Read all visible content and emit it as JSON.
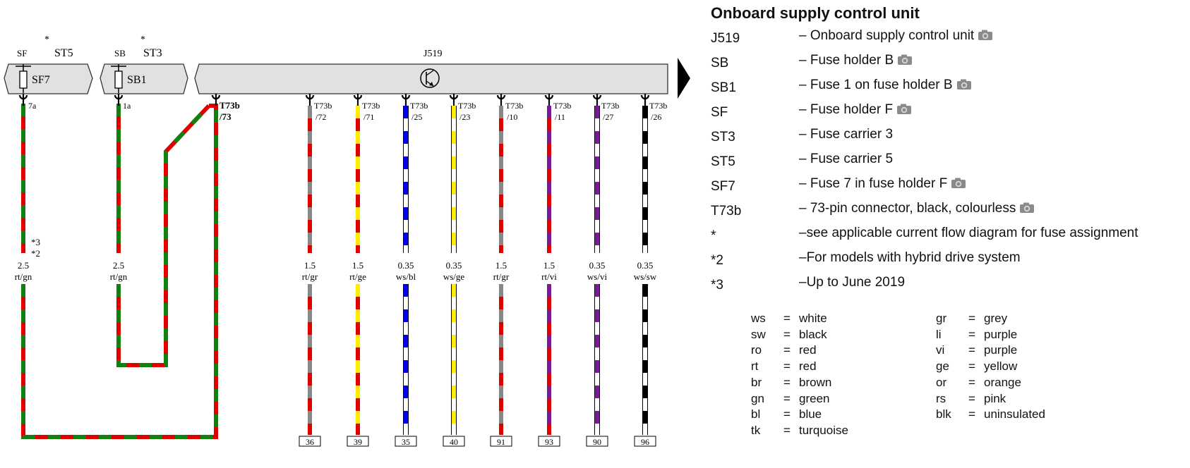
{
  "diagram": {
    "components": {
      "sf": {
        "label": "SF",
        "sub": "ST5",
        "star": "*",
        "fuse": "SF7"
      },
      "sb": {
        "label": "SB",
        "sub": "ST3",
        "star": "*",
        "fuse": "SB1"
      },
      "j519": {
        "label": "J519"
      }
    },
    "wires": [
      {
        "pin": "7a",
        "size": "2.5",
        "code": "rt/gn",
        "notes": [
          "*3",
          "*2"
        ],
        "c1": "#e00000",
        "c2": "#108010"
      },
      {
        "pin": "1a",
        "size": "2.5",
        "code": "rt/gn",
        "c1": "#e00000",
        "c2": "#108010"
      },
      {
        "pin": "T73b /73",
        "c1": "#e00000",
        "c2": "#108010"
      },
      {
        "pin": "T73b /72",
        "size": "1.5",
        "code": "rt/gr",
        "terminal": "36",
        "c1": "#e00000",
        "c2": "#888888"
      },
      {
        "pin": "T73b /71",
        "size": "1.5",
        "code": "rt/ge",
        "terminal": "39",
        "c1": "#e00000",
        "c2": "#ffee00"
      },
      {
        "pin": "T73b /25",
        "size": "0.35",
        "code": "ws/bl",
        "terminal": "35",
        "c1": "#ffffff",
        "c2": "#0000ee"
      },
      {
        "pin": "T73b /23",
        "size": "0.35",
        "code": "ws/ge",
        "terminal": "40",
        "c1": "#ffffff",
        "c2": "#ffee00"
      },
      {
        "pin": "T73b /10",
        "size": "1.5",
        "code": "rt/gr",
        "terminal": "91",
        "c1": "#e00000",
        "c2": "#888888"
      },
      {
        "pin": "T73b /11",
        "size": "1.5",
        "code": "rt/vi",
        "terminal": "93",
        "c1": "#e00000",
        "c2": "#7a1a9a"
      },
      {
        "pin": "T73b /27",
        "size": "0.35",
        "code": "ws/vi",
        "terminal": "90",
        "c1": "#ffffff",
        "c2": "#7a1a9a"
      },
      {
        "pin": "T73b /26",
        "size": "0.35",
        "code": "ws/sw",
        "terminal": "96",
        "c1": "#ffffff",
        "c2": "#000000"
      }
    ]
  },
  "legend": {
    "title": "Onboard supply control unit",
    "items": [
      {
        "code": "J519",
        "desc": "– Onboard supply control unit",
        "camera": true
      },
      {
        "code": "SB",
        "desc": "– Fuse holder B",
        "camera": true
      },
      {
        "code": "SB1",
        "desc": "– Fuse 1 on fuse holder B",
        "camera": true
      },
      {
        "code": "SF",
        "desc": "– Fuse holder F",
        "camera": true
      },
      {
        "code": "ST3",
        "desc": "– Fuse carrier 3",
        "camera": false
      },
      {
        "code": "ST5",
        "desc": "– Fuse carrier 5",
        "camera": false
      },
      {
        "code": "SF7",
        "desc": "– Fuse 7 in fuse holder F",
        "camera": true
      },
      {
        "code": "T73b",
        "desc": "– 73-pin connector, black, colourless",
        "camera": true
      },
      {
        "code": "*",
        "desc": "–see applicable current flow diagram for fuse assignment",
        "camera": false
      },
      {
        "code": "*2",
        "desc": "–For models with hybrid drive system",
        "camera": false
      },
      {
        "code": "*3",
        "desc": "–Up to June 2019",
        "camera": false
      }
    ]
  },
  "color_codes": {
    "left": [
      {
        "k": "ws",
        "v": "white"
      },
      {
        "k": "sw",
        "v": "black"
      },
      {
        "k": "ro",
        "v": "red"
      },
      {
        "k": "rt",
        "v": "red"
      },
      {
        "k": "br",
        "v": "brown"
      },
      {
        "k": "gn",
        "v": "green"
      },
      {
        "k": "bl",
        "v": "blue"
      },
      {
        "k": "tk",
        "v": "turquoise"
      }
    ],
    "right": [
      {
        "k": "gr",
        "v": "grey"
      },
      {
        "k": "li",
        "v": "purple"
      },
      {
        "k": "vi",
        "v": "purple"
      },
      {
        "k": "ge",
        "v": "yellow"
      },
      {
        "k": "or",
        "v": "orange"
      },
      {
        "k": "rs",
        "v": "pink"
      },
      {
        "k": "blk",
        "v": "uninsulated"
      }
    ]
  }
}
